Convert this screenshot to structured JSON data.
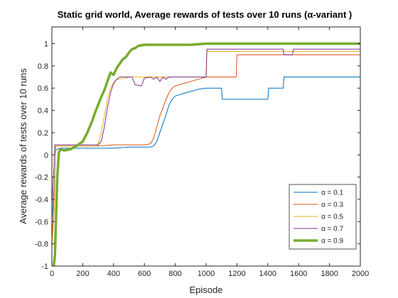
{
  "chart_data": {
    "type": "line",
    "title": "Static grid world, Average rewards of tests over 10 runs (α-variant )",
    "xlabel": "Episode",
    "ylabel": "Average rewards of tests over 10 runs",
    "xlim": [
      0,
      2000
    ],
    "ylim": [
      -1,
      1.15
    ],
    "xticks": [
      0,
      200,
      400,
      600,
      800,
      1000,
      1200,
      1400,
      1600,
      1800,
      2000
    ],
    "yticks": [
      -1,
      -0.8,
      -0.6,
      -0.4,
      -0.2,
      0,
      0.2,
      0.4,
      0.6,
      0.8,
      1
    ],
    "ytick_labels": [
      "-1",
      "-0.8",
      "-0.6",
      "-0.4",
      "-0.2",
      "0",
      "0.2",
      "0.4",
      "0.6",
      "0.8",
      "1"
    ],
    "grid": false,
    "legend_position": "bottom-right",
    "series": [
      {
        "name": "α = 0.1",
        "color": "#0072BD",
        "width": 1,
        "points": [
          [
            0,
            -0.58
          ],
          [
            15,
            -0.3
          ],
          [
            25,
            0.04
          ],
          [
            35,
            0.05
          ],
          [
            50,
            0.06
          ],
          [
            100,
            0.06
          ],
          [
            200,
            0.06
          ],
          [
            300,
            0.06
          ],
          [
            400,
            0.06
          ],
          [
            500,
            0.07
          ],
          [
            600,
            0.07
          ],
          [
            640,
            0.07
          ],
          [
            660,
            0.08
          ],
          [
            680,
            0.12
          ],
          [
            700,
            0.2
          ],
          [
            720,
            0.28
          ],
          [
            740,
            0.36
          ],
          [
            760,
            0.45
          ],
          [
            780,
            0.5
          ],
          [
            800,
            0.53
          ],
          [
            850,
            0.55
          ],
          [
            900,
            0.57
          ],
          [
            950,
            0.59
          ],
          [
            1000,
            0.6
          ],
          [
            1050,
            0.6
          ],
          [
            1100,
            0.6
          ],
          [
            1105,
            0.5
          ],
          [
            1200,
            0.5
          ],
          [
            1300,
            0.5
          ],
          [
            1400,
            0.5
          ],
          [
            1405,
            0.6
          ],
          [
            1500,
            0.6
          ],
          [
            1505,
            0.7
          ],
          [
            1600,
            0.7
          ],
          [
            1800,
            0.7
          ],
          [
            2000,
            0.7
          ]
        ]
      },
      {
        "name": "α = 0.3",
        "color": "#D95319",
        "width": 1,
        "points": [
          [
            0,
            -0.75
          ],
          [
            15,
            -0.4
          ],
          [
            25,
            0.08
          ],
          [
            40,
            0.08
          ],
          [
            100,
            0.08
          ],
          [
            200,
            0.08
          ],
          [
            300,
            0.08
          ],
          [
            400,
            0.09
          ],
          [
            500,
            0.09
          ],
          [
            600,
            0.09
          ],
          [
            640,
            0.1
          ],
          [
            660,
            0.15
          ],
          [
            680,
            0.25
          ],
          [
            700,
            0.35
          ],
          [
            720,
            0.42
          ],
          [
            740,
            0.5
          ],
          [
            760,
            0.56
          ],
          [
            780,
            0.6
          ],
          [
            800,
            0.62
          ],
          [
            850,
            0.64
          ],
          [
            900,
            0.66
          ],
          [
            950,
            0.68
          ],
          [
            1000,
            0.7
          ],
          [
            1050,
            0.7
          ],
          [
            1100,
            0.7
          ],
          [
            1195,
            0.7
          ],
          [
            1200,
            0.9
          ],
          [
            1400,
            0.9
          ],
          [
            1600,
            0.9
          ],
          [
            1800,
            0.9
          ],
          [
            2000,
            0.9
          ]
        ]
      },
      {
        "name": "α = 0.5",
        "color": "#EDB120",
        "width": 1,
        "points": [
          [
            0,
            -0.85
          ],
          [
            15,
            -0.5
          ],
          [
            25,
            0.08
          ],
          [
            50,
            0.08
          ],
          [
            100,
            0.08
          ],
          [
            200,
            0.08
          ],
          [
            280,
            0.08
          ],
          [
            300,
            0.1
          ],
          [
            320,
            0.2
          ],
          [
            340,
            0.35
          ],
          [
            360,
            0.5
          ],
          [
            380,
            0.6
          ],
          [
            400,
            0.65
          ],
          [
            420,
            0.68
          ],
          [
            440,
            0.68
          ],
          [
            460,
            0.69
          ],
          [
            480,
            0.69
          ],
          [
            500,
            0.7
          ],
          [
            600,
            0.7
          ],
          [
            700,
            0.7
          ],
          [
            800,
            0.7
          ],
          [
            900,
            0.7
          ],
          [
            1000,
            0.7
          ],
          [
            1005,
            0.93
          ],
          [
            1100,
            0.93
          ],
          [
            1200,
            0.93
          ],
          [
            1400,
            0.93
          ],
          [
            1500,
            0.93
          ],
          [
            1600,
            0.93
          ],
          [
            1800,
            0.93
          ],
          [
            2000,
            0.93
          ]
        ]
      },
      {
        "name": "α = 0.7",
        "color": "#7E2F8E",
        "width": 1,
        "points": [
          [
            0,
            -0.45
          ],
          [
            10,
            -0.2
          ],
          [
            20,
            0.09
          ],
          [
            50,
            0.09
          ],
          [
            100,
            0.09
          ],
          [
            200,
            0.09
          ],
          [
            300,
            0.09
          ],
          [
            320,
            0.12
          ],
          [
            340,
            0.25
          ],
          [
            360,
            0.42
          ],
          [
            380,
            0.56
          ],
          [
            400,
            0.64
          ],
          [
            420,
            0.68
          ],
          [
            440,
            0.7
          ],
          [
            480,
            0.7
          ],
          [
            500,
            0.7
          ],
          [
            520,
            0.7
          ],
          [
            540,
            0.63
          ],
          [
            580,
            0.62
          ],
          [
            600,
            0.69
          ],
          [
            640,
            0.7
          ],
          [
            660,
            0.68
          ],
          [
            680,
            0.7
          ],
          [
            700,
            0.66
          ],
          [
            720,
            0.7
          ],
          [
            740,
            0.68
          ],
          [
            760,
            0.7
          ],
          [
            800,
            0.7
          ],
          [
            850,
            0.7
          ],
          [
            900,
            0.7
          ],
          [
            950,
            0.7
          ],
          [
            1000,
            0.7
          ],
          [
            1005,
            0.95
          ],
          [
            1100,
            0.95
          ],
          [
            1200,
            0.95
          ],
          [
            1300,
            0.95
          ],
          [
            1400,
            0.95
          ],
          [
            1500,
            0.95
          ],
          [
            1505,
            0.9
          ],
          [
            1560,
            0.9
          ],
          [
            1565,
            0.95
          ],
          [
            1600,
            0.95
          ],
          [
            1800,
            0.95
          ],
          [
            2000,
            0.95
          ]
        ]
      },
      {
        "name": "α = 0.9",
        "color": "#77AC30",
        "width": 3.5,
        "points": [
          [
            0,
            -1.15
          ],
          [
            20,
            -0.9
          ],
          [
            35,
            -0.2
          ],
          [
            45,
            0.02
          ],
          [
            55,
            0.05
          ],
          [
            80,
            0.04
          ],
          [
            120,
            0.05
          ],
          [
            160,
            0.08
          ],
          [
            200,
            0.12
          ],
          [
            230,
            0.2
          ],
          [
            260,
            0.3
          ],
          [
            280,
            0.38
          ],
          [
            300,
            0.45
          ],
          [
            320,
            0.52
          ],
          [
            340,
            0.58
          ],
          [
            360,
            0.66
          ],
          [
            380,
            0.74
          ],
          [
            400,
            0.72
          ],
          [
            420,
            0.78
          ],
          [
            440,
            0.82
          ],
          [
            460,
            0.86
          ],
          [
            480,
            0.88
          ],
          [
            500,
            0.92
          ],
          [
            520,
            0.95
          ],
          [
            540,
            0.96
          ],
          [
            560,
            0.98
          ],
          [
            600,
            0.99
          ],
          [
            700,
            0.99
          ],
          [
            800,
            0.99
          ],
          [
            900,
            0.99
          ],
          [
            1000,
            1
          ],
          [
            1200,
            1
          ],
          [
            1400,
            1
          ],
          [
            1600,
            1
          ],
          [
            1800,
            1
          ],
          [
            2000,
            1
          ]
        ]
      }
    ]
  }
}
